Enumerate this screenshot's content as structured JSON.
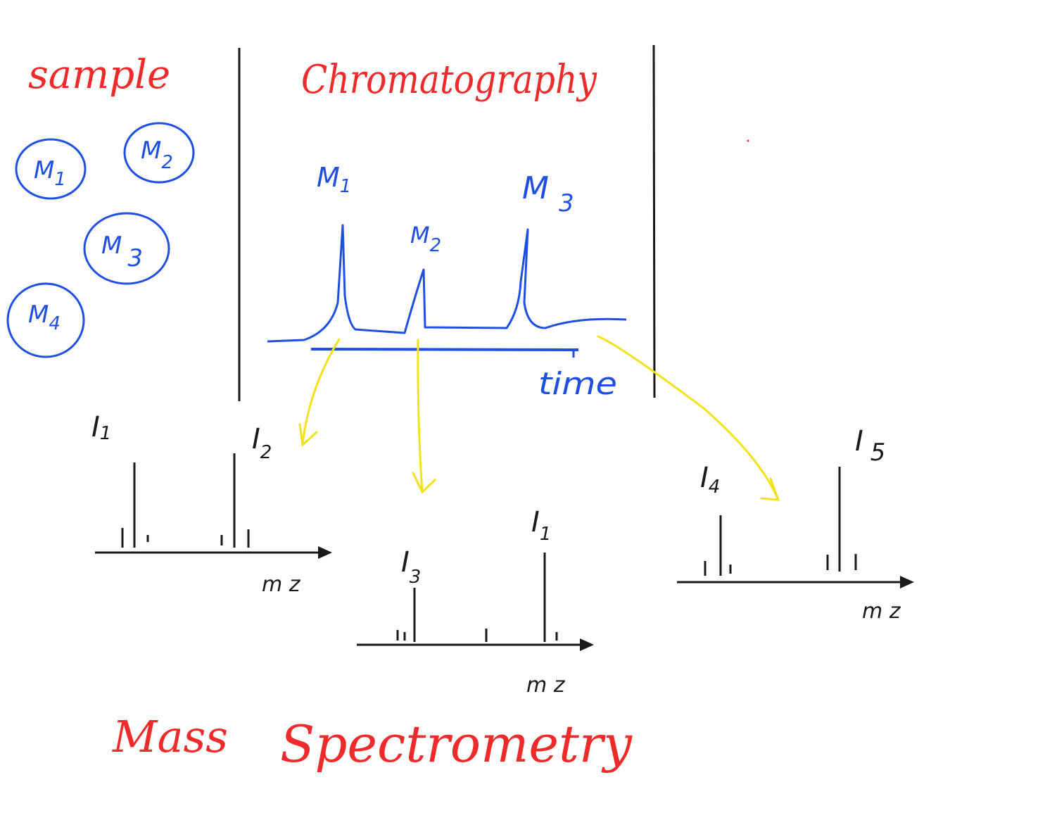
{
  "titles": {
    "sample": "sample",
    "chromatography": "Chromatography",
    "mass_spectrometry_1": "Mass",
    "mass_spectrometry_2": "Spectrometry"
  },
  "sample_molecules": [
    {
      "letter": "M",
      "index": "1"
    },
    {
      "letter": "M",
      "index": "2"
    },
    {
      "letter": "M",
      "index": "3"
    },
    {
      "letter": "M",
      "index": "4"
    }
  ],
  "chromatogram": {
    "peak_labels": [
      {
        "letter": "M",
        "index": "1"
      },
      {
        "letter": "M",
        "index": "2"
      },
      {
        "letter": "M",
        "index": "3"
      }
    ],
    "axis_label": "time"
  },
  "spectra": [
    {
      "ions": [
        {
          "letter": "I",
          "index": "1"
        },
        {
          "letter": "I",
          "index": "2"
        }
      ],
      "axis_label": "m z"
    },
    {
      "ions": [
        {
          "letter": "I",
          "index": "3"
        },
        {
          "letter": "I",
          "index": "1"
        }
      ],
      "axis_label": "m z"
    },
    {
      "ions": [
        {
          "letter": "I",
          "index": "4"
        },
        {
          "letter": "I",
          "index": "5"
        }
      ],
      "axis_label": "m z"
    }
  ],
  "colors": {
    "red": "#ef2a2a",
    "blue": "#1f4fe0",
    "black": "#1a1a1a",
    "yellow": "#f2e21a"
  }
}
